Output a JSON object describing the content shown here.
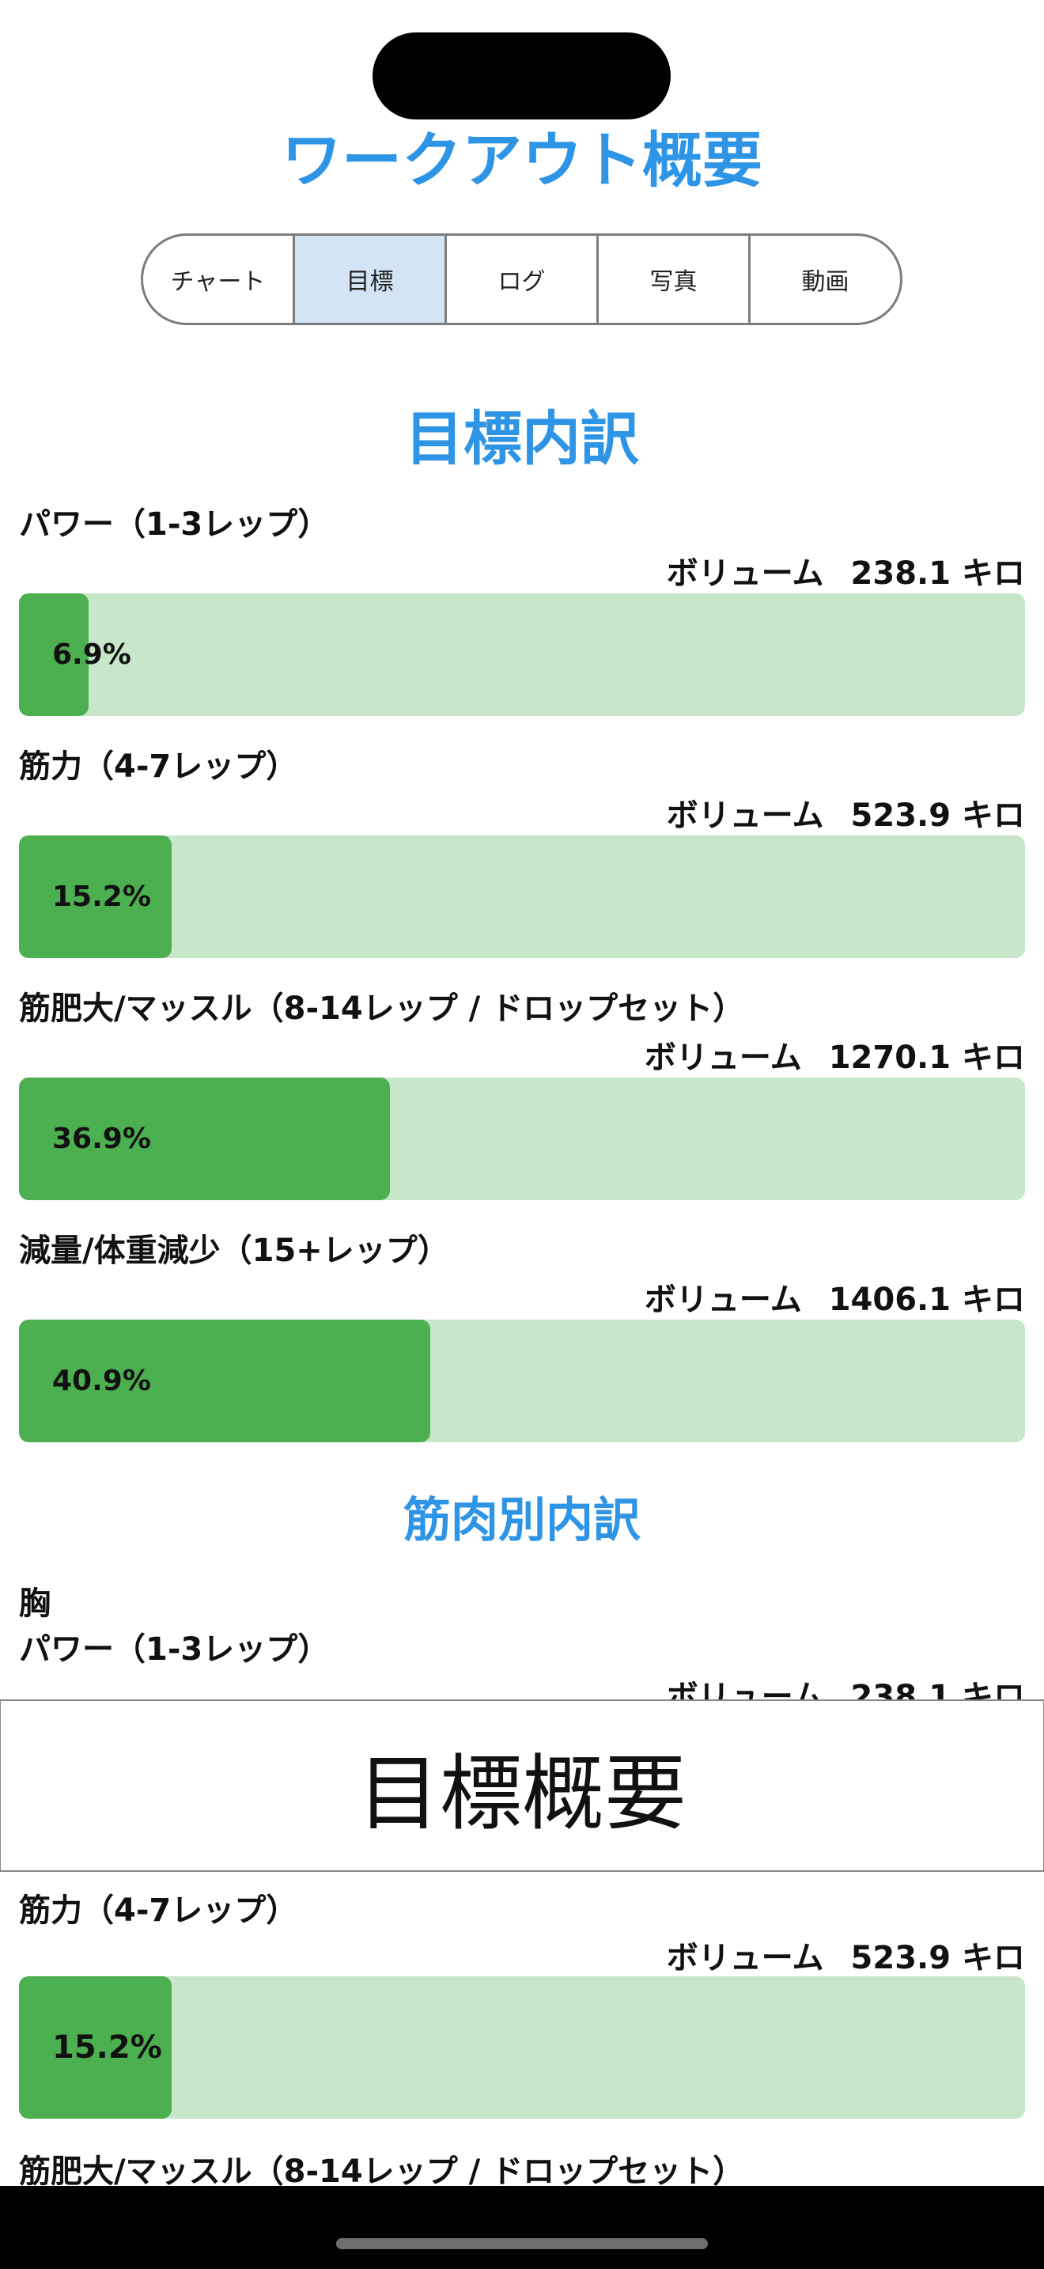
{
  "header": {
    "title": "ワークアウト概要"
  },
  "tabs": [
    {
      "label": "チャート",
      "selected": false
    },
    {
      "label": "目標",
      "selected": true
    },
    {
      "label": "ログ",
      "selected": false
    },
    {
      "label": "写真",
      "selected": false
    },
    {
      "label": "動画",
      "selected": false
    }
  ],
  "goal_breakdown": {
    "title": "目標内訳",
    "items": [
      {
        "label": "パワー（1-3レップ）",
        "volume_label": "ボリューム",
        "volume_value": "238.1 キロ",
        "percent_text": "6.9%",
        "percent": 6.9
      },
      {
        "label": "筋力（4-7レップ）",
        "volume_label": "ボリューム",
        "volume_value": "523.9 キロ",
        "percent_text": "15.2%",
        "percent": 15.2
      },
      {
        "label": "筋肥大/マッスル（8-14レップ / ドロップセット）",
        "volume_label": "ボリューム",
        "volume_value": "1270.1 キロ",
        "percent_text": "36.9%",
        "percent": 36.9
      },
      {
        "label": "減量/体重減少（15+レップ）",
        "volume_label": "ボリューム",
        "volume_value": "1406.1 キロ",
        "percent_text": "40.9%",
        "percent": 40.9
      }
    ]
  },
  "muscle_breakdown": {
    "title": "筋肉別内訳",
    "muscle": "胸",
    "items": [
      {
        "label": "パワー（1-3レップ）",
        "volume_label": "ボリューム",
        "volume_value": "238.1 キロ"
      },
      {
        "label": "筋力（4-7レップ）",
        "volume_label": "ボリューム",
        "volume_value": "523.9 キロ",
        "percent_text": "15.2%",
        "percent": 15.2
      },
      {
        "label": "筋肥大/マッスル（8-14レップ / ドロップセット）"
      }
    ]
  },
  "overlay": {
    "text": "目標概要"
  },
  "colors": {
    "accent": "#2e94e6",
    "bar_fill": "#4caf50",
    "bar_track": "#c8e6c9",
    "selected_tab": "#d3e4f5"
  }
}
